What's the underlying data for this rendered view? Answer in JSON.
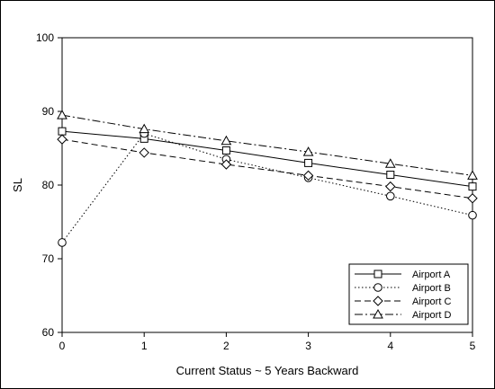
{
  "chart_data": {
    "type": "line",
    "title": "",
    "xlabel": "Current Status ~ 5 Years Backward",
    "ylabel": "SL",
    "xlim": [
      0,
      5
    ],
    "ylim": [
      60,
      100
    ],
    "x_ticks": [
      "0",
      "1",
      "2",
      "3",
      "4",
      "5"
    ],
    "y_ticks": [
      "60",
      "70",
      "80",
      "90",
      "100"
    ],
    "grid": false,
    "legend_position": "bottom-right",
    "x": [
      0,
      1,
      2,
      3,
      4,
      5
    ],
    "series": [
      {
        "name": "Airport A",
        "values": [
          87.3,
          86.3,
          84.7,
          83.0,
          81.4,
          79.8
        ],
        "marker": "square",
        "dash": "solid"
      },
      {
        "name": "Airport B",
        "values": [
          72.2,
          87.0,
          83.5,
          81.0,
          78.5,
          75.9
        ],
        "marker": "circle",
        "dash": "dotted"
      },
      {
        "name": "Airport C",
        "values": [
          86.2,
          84.4,
          82.8,
          81.3,
          79.8,
          78.2
        ],
        "marker": "diamond",
        "dash": "dashed"
      },
      {
        "name": "Airport D",
        "values": [
          89.5,
          87.6,
          86.0,
          84.5,
          82.9,
          81.3
        ],
        "marker": "triangle",
        "dash": "dashdot"
      }
    ]
  }
}
